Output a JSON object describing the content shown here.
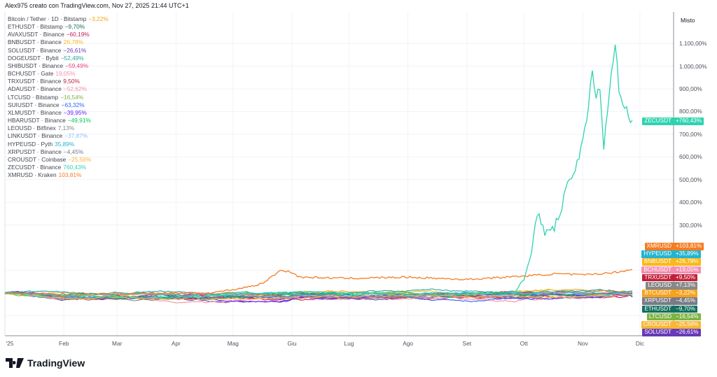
{
  "header": "Alex975 creato con TradingView.com, Nov 27, 2025 21:44 UTC+1",
  "logo_text": "TradingView",
  "chart_data": {
    "type": "line",
    "title": "Performance comparison vs Bitcoin / Tether · 1D · Bitstamp",
    "ylabel": "Misto",
    "ylim": [
      -100,
      1150
    ],
    "x_unit": "day of 2025 (0 = Jan 1)",
    "xlim": [
      0,
      330
    ],
    "grid": true,
    "legend_placement": "top-left",
    "yticks": [
      "1.100,00%",
      "1.000,00%",
      "900,00%",
      "800,00%",
      "700,00%",
      "600,00%",
      "500,00%",
      "400,00%",
      "300,00%"
    ],
    "ytick_values": [
      1100,
      1000,
      900,
      800,
      700,
      600,
      500,
      400,
      300
    ],
    "xticks": [
      "'25",
      "Feb",
      "Mar",
      "Apr",
      "Mag",
      "Giu",
      "Lug",
      "Ago",
      "Set",
      "Ott",
      "Nov",
      "Dic"
    ],
    "xtick_days": [
      0,
      31,
      59,
      90,
      120,
      151,
      181,
      212,
      243,
      273,
      304,
      334
    ],
    "series": [
      {
        "name": "Bitcoin / Tether · 1D · Bitstamp",
        "tag": "BTCUSDT",
        "value_label": "−3,22%",
        "tag_label": "−3,22%",
        "final": -3.22,
        "color": "#f7a21b"
      },
      {
        "name": "ETHUSDT · Bitstamp",
        "tag": "ETHUSDT",
        "value_label": "−9,70%",
        "tag_label": "−9,70%",
        "final": -9.7,
        "color": "#136f5e"
      },
      {
        "name": "AVAXUSDT · Binance",
        "value_label": "−60,19%",
        "final": -60.19,
        "color": "#c2185b"
      },
      {
        "name": "BNBUSDT · Binance",
        "tag": "BNBUSDT",
        "value_label": "26,78%",
        "tag_label": "+26,78%",
        "final": 26.78,
        "color": "#f9b81b"
      },
      {
        "name": "SOLUSDT · Binance",
        "tag": "SOLUSDT",
        "value_label": "−26,61%",
        "tag_label": "−26,61%",
        "final": -26.61,
        "color": "#673ab7"
      },
      {
        "name": "DOGEUSDT · Bybit",
        "value_label": "−52,49%",
        "final": -52.49,
        "color": "#26a69a"
      },
      {
        "name": "SHIBUSDT · Binance",
        "value_label": "−59,49%",
        "final": -59.49,
        "color": "#ec407a"
      },
      {
        "name": "BCHUSDT · Gate",
        "tag": "BCHUSDT",
        "value_label": "19,05%",
        "tag_label": "+19,05%",
        "final": 19.05,
        "color": "#f48fb1"
      },
      {
        "name": "TRXUSDT · Binance",
        "tag": "TRXUSDT",
        "value_label": "9,50%",
        "tag_label": "+9,50%",
        "final": 9.5,
        "color": "#c2203a"
      },
      {
        "name": "ADAUSDT · Binance",
        "value_label": "−52,62%",
        "final": -52.62,
        "color": "#f48fa0"
      },
      {
        "name": "LTCUSD · Bitstamp",
        "tag": "LTCUSD",
        "value_label": "−16,54%",
        "tag_label": "−16,54%",
        "final": -16.54,
        "color": "#7cb342"
      },
      {
        "name": "SUIUSDT · Binance",
        "value_label": "−63,32%",
        "final": -63.32,
        "color": "#2962ff"
      },
      {
        "name": "XLMUSDT · Binance",
        "value_label": "−39,95%",
        "final": -39.95,
        "color": "#651fff"
      },
      {
        "name": "HBARUSDT · Binance",
        "value_label": "−49,91%",
        "final": -49.91,
        "color": "#00c853"
      },
      {
        "name": "LEOUSD · Bitfinex",
        "tag": "LEOUSD",
        "value_label": "7,13%",
        "tag_label": "+7,13%",
        "final": 7.13,
        "color": "#888888"
      },
      {
        "name": "LINKUSDT · Binance",
        "value_label": "−37,87%",
        "final": -37.87,
        "color": "#90bff9"
      },
      {
        "name": "HYPEUSD · Pyth",
        "tag": "HYPEUSD",
        "value_label": "35,89%",
        "tag_label": "+35,89%",
        "final": 35.89,
        "color": "#22b5d1"
      },
      {
        "name": "XRPUSDT · Binance",
        "tag": "XRPUSDT",
        "value_label": "−4,45%",
        "tag_label": "−4,45%",
        "final": -4.45,
        "color": "#787b86"
      },
      {
        "name": "CROUSDT · Coinbase",
        "tag": "CROUSDT",
        "value_label": "−25,56%",
        "tag_label": "−25,56%",
        "final": -25.56,
        "color": "#f9b634"
      },
      {
        "name": "ZECUSDT · Binance",
        "tag": "ZECUSDT",
        "value_label": "760,43%",
        "tag_label": "+760,43%",
        "final": 760.43,
        "color": "#2ed3b0",
        "points": [
          [
            0,
            0
          ],
          [
            31,
            -10
          ],
          [
            59,
            -15
          ],
          [
            90,
            -20
          ],
          [
            120,
            -8
          ],
          [
            151,
            5
          ],
          [
            181,
            0
          ],
          [
            212,
            -5
          ],
          [
            243,
            -5
          ],
          [
            268,
            5
          ],
          [
            273,
            60
          ],
          [
            277,
            180
          ],
          [
            280,
            350
          ],
          [
            283,
            280
          ],
          [
            287,
            260
          ],
          [
            292,
            350
          ],
          [
            297,
            500
          ],
          [
            302,
            600
          ],
          [
            306,
            740
          ],
          [
            309,
            1000
          ],
          [
            311,
            850
          ],
          [
            313,
            900
          ],
          [
            315,
            650
          ],
          [
            318,
            900
          ],
          [
            321,
            1100
          ],
          [
            323,
            900
          ],
          [
            325,
            850
          ],
          [
            327,
            800
          ],
          [
            328,
            780
          ],
          [
            330,
            760.43
          ]
        ]
      },
      {
        "name": "XMRUSD · Kraken",
        "tag": "XMRUSD",
        "value_label": "103,81%",
        "tag_label": "+103,81%",
        "final": 103.81,
        "color": "#f57c22",
        "points": [
          [
            0,
            0
          ],
          [
            31,
            -5
          ],
          [
            59,
            -3
          ],
          [
            90,
            0
          ],
          [
            105,
            -2
          ],
          [
            120,
            15
          ],
          [
            135,
            40
          ],
          [
            145,
            100
          ],
          [
            150,
            95
          ],
          [
            155,
            70
          ],
          [
            181,
            65
          ],
          [
            212,
            70
          ],
          [
            243,
            60
          ],
          [
            273,
            75
          ],
          [
            290,
            85
          ],
          [
            304,
            80
          ],
          [
            320,
            90
          ],
          [
            330,
            103.81
          ]
        ]
      }
    ],
    "right_tags_order": [
      "XMRUSD",
      "HYPEUSD",
      "BNBUSDT",
      "BCHUSDT",
      "TRXUSDT",
      "LEOUSD",
      "BTCUSDT",
      "XRPUSDT",
      "ETHUSDT",
      "LTCUSD",
      "CROUSDT",
      "SOLUSDT"
    ]
  }
}
